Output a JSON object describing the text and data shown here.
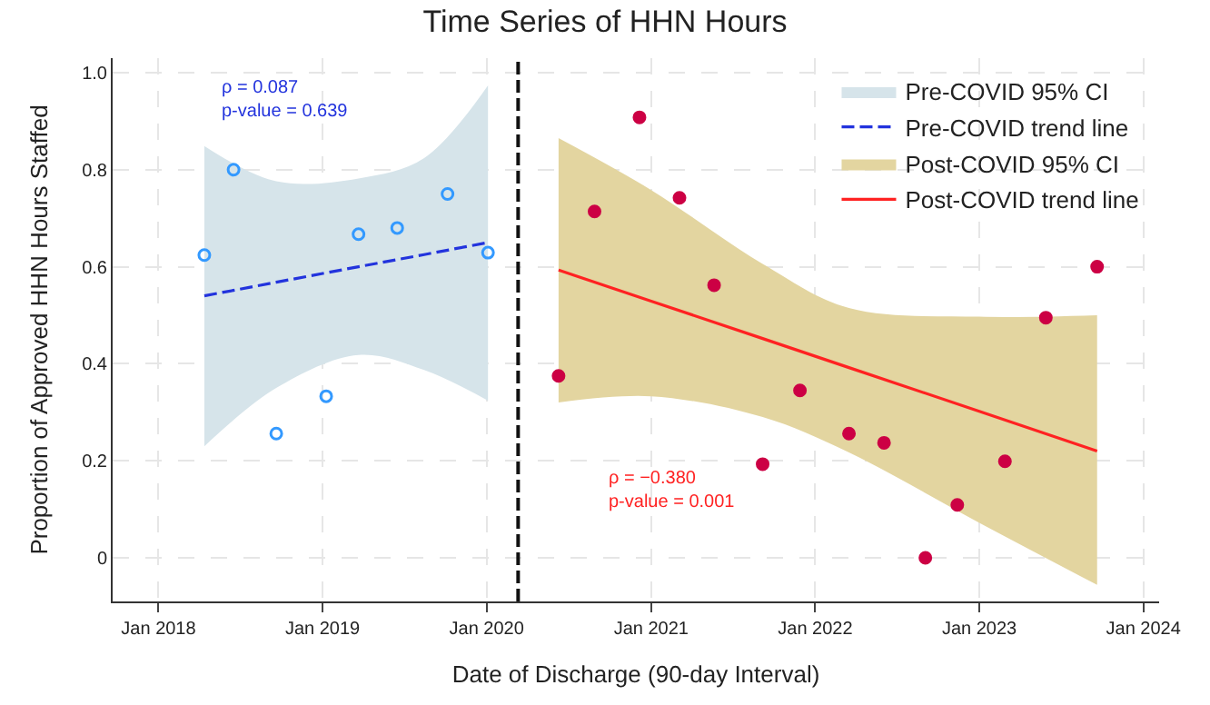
{
  "chart_data": {
    "type": "scatter",
    "title": "Time Series of HHN Hours",
    "xlabel": "Date of Discharge (90-day Interval)",
    "ylabel": "Proportion of Approved HHN Hours Staffed",
    "xlim": [
      "2017-09-21",
      "2024-02-05"
    ],
    "ylim": [
      -0.09,
      1.03
    ],
    "xticks": [
      {
        "value": "2018-01-01",
        "label": "Jan 2018"
      },
      {
        "value": "2019-01-01",
        "label": "Jan 2019"
      },
      {
        "value": "2020-01-01",
        "label": "Jan 2020"
      },
      {
        "value": "2021-01-01",
        "label": "Jan 2021"
      },
      {
        "value": "2022-01-01",
        "label": "Jan 2022"
      },
      {
        "value": "2023-01-01",
        "label": "Jan 2023"
      },
      {
        "value": "2024-01-01",
        "label": "Jan 2024"
      }
    ],
    "yticks": [
      0,
      0.2,
      0.4,
      0.6,
      0.8,
      {
        "value": 1.0,
        "label": "1.0"
      }
    ],
    "grid": true,
    "legend": "top right",
    "series": [
      {
        "name": "Pre-COVID 95% CI",
        "type": "area",
        "color": "#d6e4ea"
      },
      {
        "name": "Pre-COVID trend line",
        "type": "line",
        "color": "#2233dd",
        "line_style": "dashed",
        "x": [
          "2018-04-13",
          "2018-09-20",
          "2019-03-22",
          "2019-08-15",
          "2020-01-04"
        ],
        "values": [
          0.54,
          0.568,
          0.6,
          0.625,
          0.65
        ],
        "lower": [
          0.23,
          0.35,
          0.418,
          0.387,
          0.324
        ],
        "upper": [
          0.849,
          0.776,
          0.782,
          0.824,
          0.974
        ]
      },
      {
        "name": "Post-COVID 95% CI",
        "type": "area",
        "color": "#e3d5a0"
      },
      {
        "name": "Post-COVID trend line",
        "type": "line",
        "color": "#ff2222",
        "line_style": "solid",
        "x": [
          "2020-06-09",
          "2021-01-01",
          "2021-09-06",
          "2022-03-17",
          "2023-01-01",
          "2023-09-20"
        ],
        "values": [
          0.593,
          0.529,
          0.452,
          0.392,
          0.302,
          0.22
        ],
        "lower": [
          0.32,
          0.333,
          0.29,
          0.217,
          0.072,
          -0.056
        ],
        "upper": [
          0.865,
          0.758,
          0.606,
          0.515,
          0.497,
          0.5
        ]
      },
      {
        "color": "#3399ff",
        "marker": "circle-open",
        "x": [
          "2018-04-13",
          "2018-06-17",
          "2018-09-20",
          "2019-01-09",
          "2019-03-22",
          "2019-06-16",
          "2019-10-06",
          "2020-01-04"
        ],
        "values": [
          0.624,
          0.8,
          0.256,
          0.333,
          0.667,
          0.68,
          0.75,
          0.629
        ]
      },
      {
        "color": "#cc0044",
        "marker": "circle",
        "x": [
          "2020-06-09",
          "2020-08-28",
          "2020-12-06",
          "2021-03-05",
          "2021-05-21",
          "2021-09-06",
          "2021-11-28",
          "2022-03-17",
          "2022-06-03",
          "2022-09-03",
          "2022-11-13",
          "2023-02-27",
          "2023-05-29",
          "2023-09-20"
        ],
        "values": [
          0.375,
          0.714,
          0.908,
          0.742,
          0.562,
          0.193,
          0.345,
          0.256,
          0.237,
          0.0,
          0.109,
          0.199,
          0.495,
          0.6
        ]
      }
    ],
    "ref_lines": [
      {
        "axis": "x",
        "value": "2020-03-11",
        "color": "#111111",
        "line_style": "dashed"
      }
    ],
    "annotations": [
      "ρ = 0.087\np-value = 0.639",
      "ρ = −0.380\np-value = 0.001"
    ]
  }
}
